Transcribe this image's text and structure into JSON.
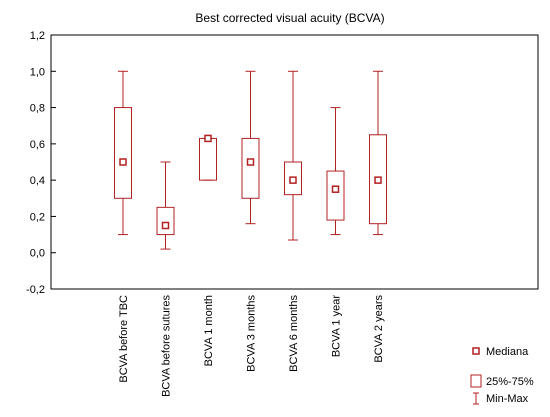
{
  "chart_data": {
    "type": "boxplot",
    "title": "Best corrected visual acuity (BCVA)",
    "xlabel": "",
    "ylabel": "",
    "ylim": [
      -0.2,
      1.2
    ],
    "yticks": [
      "-0,2",
      "0,0",
      "0,2",
      "0,4",
      "0,6",
      "0,8",
      "1,0",
      "1,2"
    ],
    "grid": false,
    "color": "#b22222",
    "categories": [
      "BCVA before TBC",
      "BCVA before sutures",
      "BCVA 1 month",
      "BCVA 3 months",
      "BCVA 6 months",
      "BCVA 1 year",
      "BCVA 2 years"
    ],
    "boxes": [
      {
        "min": 0.1,
        "q1": 0.3,
        "median": 0.5,
        "q3": 0.8,
        "max": 1.0
      },
      {
        "min": 0.02,
        "q1": 0.1,
        "median": 0.15,
        "q3": 0.25,
        "max": 0.5
      },
      {
        "min": 0.4,
        "q1": 0.4,
        "median": 0.63,
        "q3": 0.63,
        "max": 0.63
      },
      {
        "min": 0.16,
        "q1": 0.3,
        "median": 0.5,
        "q3": 0.63,
        "max": 1.0
      },
      {
        "min": 0.07,
        "q1": 0.32,
        "median": 0.4,
        "q3": 0.5,
        "max": 1.0
      },
      {
        "min": 0.1,
        "q1": 0.18,
        "median": 0.35,
        "q3": 0.45,
        "max": 0.8
      },
      {
        "min": 0.1,
        "q1": 0.16,
        "median": 0.4,
        "q3": 0.65,
        "max": 1.0
      }
    ],
    "legend": {
      "placement": "bottom-right",
      "median_label": "Mediana",
      "box_label": "25%-75%",
      "whisker_label": "Min-Max"
    }
  }
}
